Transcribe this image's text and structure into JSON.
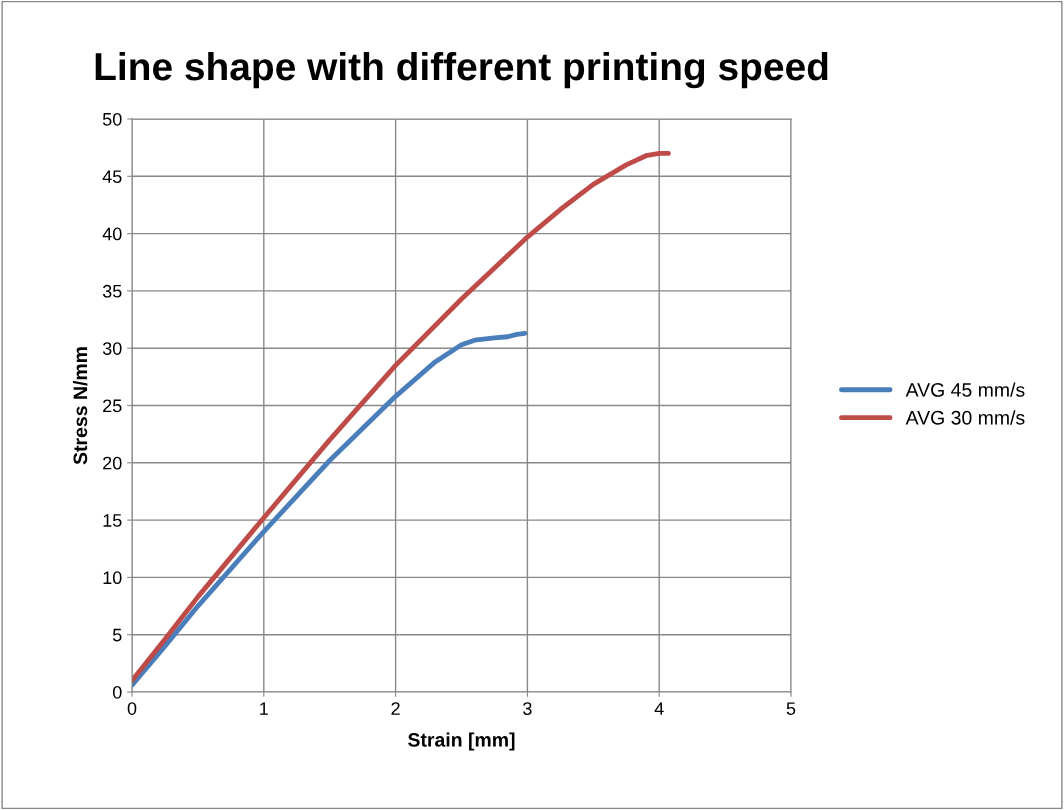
{
  "chart_data": {
    "type": "line",
    "title": "Line shape with different printing speed",
    "xlabel": "Strain [mm]",
    "ylabel": "Stress N/mm",
    "xlim": [
      0,
      5
    ],
    "xticks": [
      0,
      1,
      2,
      3,
      4,
      5
    ],
    "ylim": [
      0,
      50
    ],
    "yticks": [
      0,
      5,
      10,
      15,
      20,
      25,
      30,
      35,
      40,
      45,
      50
    ],
    "grid": true,
    "legend": "right",
    "marker": "none",
    "line_style": "solid",
    "series": [
      {
        "name": "AVG 45 mm/s",
        "color": "#4a7ebb",
        "x": [
          0,
          0.25,
          0.5,
          1,
          1.5,
          2,
          2.3,
          2.5,
          2.6,
          2.75,
          2.85,
          2.92,
          2.98
        ],
        "values": [
          0.6,
          4.0,
          7.5,
          14.0,
          20.2,
          25.8,
          28.8,
          30.3,
          30.7,
          30.9,
          31.0,
          31.2,
          31.3
        ]
      },
      {
        "name": "AVG 30 mm/s",
        "color": "#be4b48",
        "x": [
          0,
          0.25,
          0.5,
          1,
          1.5,
          2,
          2.5,
          3,
          3.25,
          3.5,
          3.75,
          3.9,
          4.0,
          4.07
        ],
        "values": [
          1.0,
          4.6,
          8.3,
          15.2,
          22.0,
          28.5,
          34.3,
          39.7,
          42.1,
          44.3,
          46.0,
          46.8,
          47.0,
          47.0
        ]
      }
    ]
  }
}
